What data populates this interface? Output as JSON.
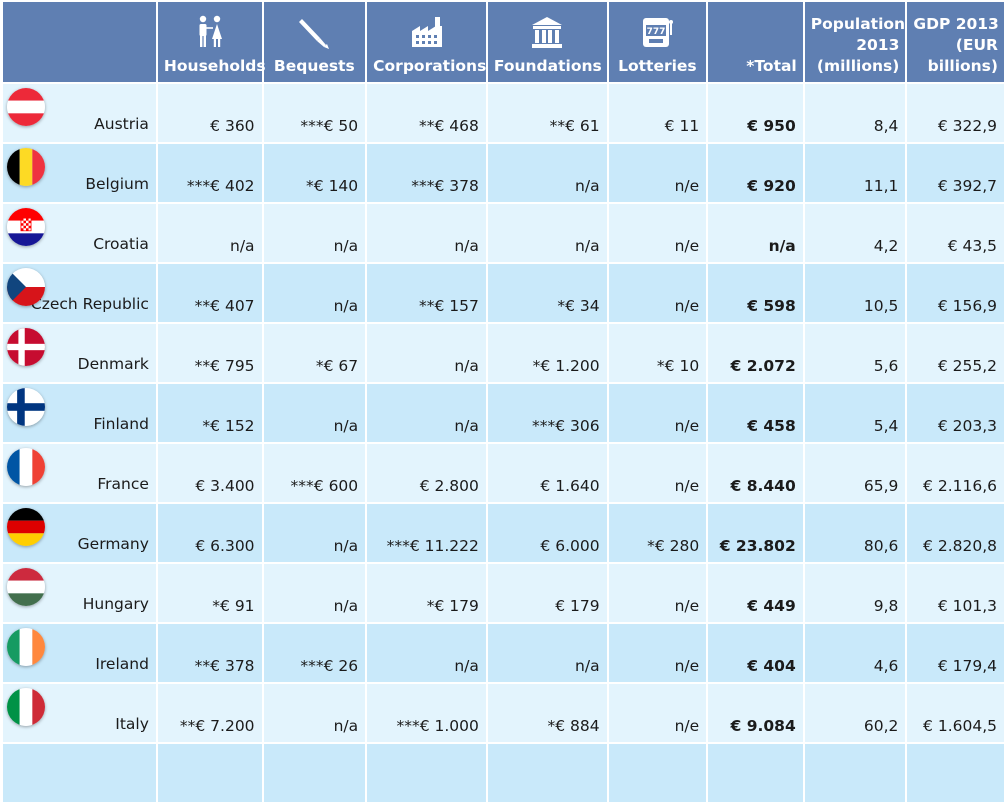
{
  "header": {
    "households": "Households",
    "bequests": "Bequests",
    "corporations": "Corporations",
    "foundations": "Foundations",
    "lotteries": "Lotteries",
    "total": "*Total",
    "population_l1": "Population",
    "population_l2": "2013",
    "population_l3": "(millions)",
    "gdp_l1": "GDP 2013",
    "gdp_l2": "(EUR",
    "gdp_l3": "billions)"
  },
  "icons": {
    "households": "people-couple-icon",
    "bequests": "quill-pen-icon",
    "corporations": "factory-icon",
    "foundations": "institution-building-icon",
    "lotteries": "slot-machine-icon"
  },
  "rows": [
    {
      "country": "Austria",
      "flag": "austria-flag-icon",
      "households": "€ 360",
      "bequests": "***€ 50",
      "corporations": "**€ 468",
      "foundations": "**€ 61",
      "lotteries": "€ 11",
      "total": "€ 950",
      "population": "8,4",
      "gdp": "€ 322,9"
    },
    {
      "country": "Belgium",
      "flag": "belgium-flag-icon",
      "households": "***€ 402",
      "bequests": "*€ 140",
      "corporations": "***€ 378",
      "foundations": "n/a",
      "lotteries": "n/e",
      "total": "€ 920",
      "population": "11,1",
      "gdp": "€ 392,7"
    },
    {
      "country": "Croatia",
      "flag": "croatia-flag-icon",
      "households": "n/a",
      "bequests": "n/a",
      "corporations": "n/a",
      "foundations": "n/a",
      "lotteries": "n/e",
      "total": "n/a",
      "population": "4,2",
      "gdp": "€ 43,5"
    },
    {
      "country": "Czech Republic",
      "flag": "czech-flag-icon",
      "households": "**€ 407",
      "bequests": "n/a",
      "corporations": "**€ 157",
      "foundations": "*€ 34",
      "lotteries": "n/e",
      "total": "€ 598",
      "population": "10,5",
      "gdp": "€ 156,9"
    },
    {
      "country": "Denmark",
      "flag": "denmark-flag-icon",
      "households": "**€ 795",
      "bequests": "*€ 67",
      "corporations": "n/a",
      "foundations": "*€ 1.200",
      "lotteries": "*€ 10",
      "total": "€ 2.072",
      "population": "5,6",
      "gdp": "€ 255,2"
    },
    {
      "country": "Finland",
      "flag": "finland-flag-icon",
      "households": "*€ 152",
      "bequests": "n/a",
      "corporations": "n/a",
      "foundations": "***€ 306",
      "lotteries": "n/e",
      "total": "€ 458",
      "population": "5,4",
      "gdp": "€ 203,3"
    },
    {
      "country": "France",
      "flag": "france-flag-icon",
      "households": "€ 3.400",
      "bequests": "***€ 600",
      "corporations": "€ 2.800",
      "foundations": "€ 1.640",
      "lotteries": "n/e",
      "total": "€ 8.440",
      "population": "65,9",
      "gdp": "€ 2.116,6"
    },
    {
      "country": "Germany",
      "flag": "germany-flag-icon",
      "households": "€ 6.300",
      "bequests": "n/a",
      "corporations": "***€ 11.222",
      "foundations": "€ 6.000",
      "lotteries": "*€ 280",
      "total": "€ 23.802",
      "population": "80,6",
      "gdp": "€ 2.820,8"
    },
    {
      "country": "Hungary",
      "flag": "hungary-flag-icon",
      "households": "*€ 91",
      "bequests": "n/a",
      "corporations": "*€ 179",
      "foundations": "€ 179",
      "lotteries": "n/e",
      "total": "€ 449",
      "population": "9,8",
      "gdp": "€ 101,3"
    },
    {
      "country": "Ireland",
      "flag": "ireland-flag-icon",
      "households": "**€ 378",
      "bequests": "***€ 26",
      "corporations": "n/a",
      "foundations": "n/a",
      "lotteries": "n/e",
      "total": "€ 404",
      "population": "4,6",
      "gdp": "€ 179,4"
    },
    {
      "country": "Italy",
      "flag": "italy-flag-icon",
      "households": "**€ 7.200",
      "bequests": "n/a",
      "corporations": "***€ 1.000",
      "foundations": "*€ 884",
      "lotteries": "n/e",
      "total": "€ 9.084",
      "population": "60,2",
      "gdp": "€ 1.604,5"
    }
  ],
  "colors": {
    "header_bg": "#5f7fb2",
    "row_light": "#e3f4fd",
    "row_dark": "#c9e9fa",
    "country_text": "#265f9a"
  }
}
